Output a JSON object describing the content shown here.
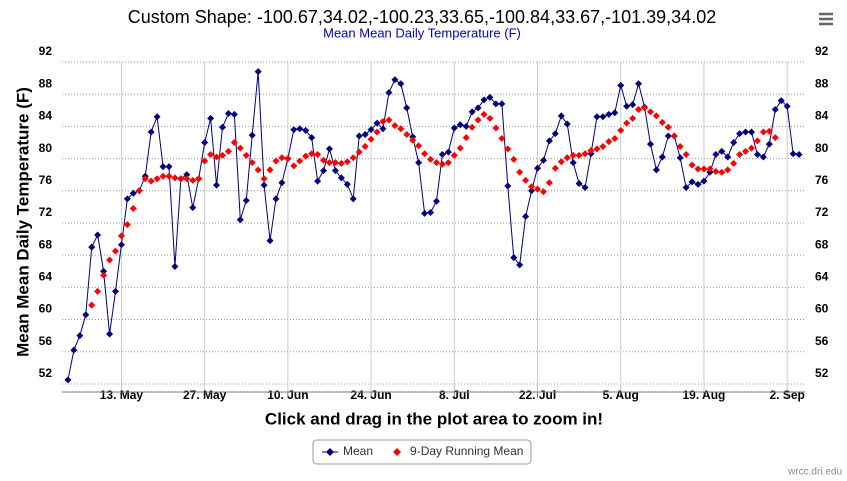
{
  "chart_data": {
    "type": "line",
    "title": "Custom Shape: -100.67,34.02,-100.23,33.65,-100.84,33.67,-101.39,34.02",
    "subtitle": "Mean Mean Daily Temperature (F)",
    "y_label": "Mean Mean Daily Temperature (F)",
    "x_label": "Click and drag in the plot area to zoom in!",
    "credits": "wrcc.dri.edu",
    "x": [
      "05-04",
      "05-05",
      "05-06",
      "05-07",
      "05-08",
      "05-09",
      "05-10",
      "05-11",
      "05-12",
      "05-13",
      "05-14",
      "05-15",
      "05-16",
      "05-17",
      "05-18",
      "05-19",
      "05-20",
      "05-21",
      "05-22",
      "05-23",
      "05-24",
      "05-25",
      "05-26",
      "05-27",
      "05-28",
      "05-29",
      "05-30",
      "05-31",
      "06-01",
      "06-02",
      "06-03",
      "06-04",
      "06-05",
      "06-06",
      "06-07",
      "06-08",
      "06-09",
      "06-10",
      "06-11",
      "06-12",
      "06-13",
      "06-14",
      "06-15",
      "06-16",
      "06-17",
      "06-18",
      "06-19",
      "06-20",
      "06-21",
      "06-22",
      "06-23",
      "06-24",
      "06-25",
      "06-26",
      "06-27",
      "06-28",
      "06-29",
      "06-30",
      "07-01",
      "07-02",
      "07-03",
      "07-04",
      "07-05",
      "07-06",
      "07-07",
      "07-08",
      "07-09",
      "07-10",
      "07-11",
      "07-12",
      "07-13",
      "07-14",
      "07-15",
      "07-16",
      "07-17",
      "07-18",
      "07-19",
      "07-20",
      "07-21",
      "07-22",
      "07-23",
      "07-24",
      "07-25",
      "07-26",
      "07-27",
      "07-28",
      "07-29",
      "07-30",
      "07-31",
      "08-01",
      "08-02",
      "08-03",
      "08-04",
      "08-05",
      "08-06",
      "08-07",
      "08-08",
      "08-09",
      "08-10",
      "08-11",
      "08-12",
      "08-13",
      "08-14",
      "08-15",
      "08-16",
      "08-17",
      "08-18",
      "08-19",
      "08-20",
      "08-21",
      "08-22",
      "08-23",
      "08-24",
      "08-25",
      "08-26",
      "08-27",
      "08-28",
      "08-29",
      "08-30",
      "08-31",
      "09-01",
      "09-02",
      "09-03",
      "09-04"
    ],
    "series": [
      {
        "name": "Mean",
        "color": "#000080",
        "line": true,
        "values": [
          52.5,
          56.2,
          58,
          60.6,
          69,
          70.5,
          66,
          58.2,
          63.5,
          69.3,
          75,
          75.7,
          76,
          77.8,
          83.3,
          85.2,
          79,
          79,
          66.6,
          77.5,
          78,
          73.9,
          77.5,
          82,
          85,
          76.7,
          83.9,
          85.6,
          85.5,
          72.4,
          74.8,
          82.9,
          90.8,
          76.7,
          69.8,
          75,
          77,
          80,
          83.6,
          83.7,
          83.5,
          82.6,
          77.2,
          78.5,
          81.2,
          78.5,
          77.6,
          76.8,
          75,
          82.8,
          83,
          83.6,
          84.4,
          83.7,
          88.2,
          89.8,
          89.3,
          86.3,
          82.7,
          79.5,
          73.2,
          73.3,
          74.7,
          80.5,
          80.8,
          83.8,
          84.2,
          84,
          85.8,
          86.3,
          87.3,
          87.6,
          86.8,
          86.8,
          76.6,
          67.7,
          66.8,
          72.8,
          76,
          78.8,
          79.8,
          82.2,
          83.1,
          85.3,
          84.3,
          79.5,
          76.9,
          76.4,
          80.6,
          85.2,
          85.2,
          85.5,
          85.7,
          89.1,
          86.5,
          86.7,
          89.3,
          86.4,
          81.8,
          78.6,
          80.2,
          82.8,
          82.8,
          80.1,
          76.4,
          77.1,
          76.8,
          77.2,
          78.3,
          80.5,
          80.9,
          80.2,
          82,
          83.1,
          83.3,
          83.3,
          80.5,
          80.2,
          81.8,
          86.1,
          87.2,
          86.5,
          80.6,
          80.5
        ]
      },
      {
        "name": "9-Day Running Mean",
        "color": "#ff0000",
        "line": false,
        "values": [
          null,
          null,
          null,
          null,
          61.8,
          63.5,
          65.5,
          67.4,
          68.5,
          70.4,
          71.8,
          73.8,
          76,
          77.5,
          77.2,
          77.5,
          77.8,
          77.8,
          77.6,
          77.5,
          77.5,
          77.3,
          77.5,
          79.7,
          80.5,
          80.2,
          80.4,
          80.9,
          82,
          81.3,
          80.4,
          79.5,
          78.6,
          77.5,
          78.6,
          79.7,
          80.1,
          80,
          79.1,
          79.7,
          80.3,
          80.6,
          80.5,
          79.8,
          79.5,
          79.5,
          79.4,
          79.6,
          80.1,
          80.8,
          81.5,
          82.4,
          83.3,
          84.6,
          84.8,
          84.1,
          83.7,
          83,
          82.3,
          81.6,
          80.6,
          79.9,
          79.5,
          79.3,
          79.5,
          80.4,
          81.3,
          82.6,
          83.9,
          84.8,
          85.5,
          85,
          83.8,
          82.5,
          81.2,
          79.9,
          78.3,
          77.3,
          76.5,
          76.2,
          75.9,
          77,
          78.8,
          79.6,
          80.1,
          80.4,
          80.4,
          80.6,
          81,
          81.2,
          81.5,
          82.1,
          82.5,
          83.5,
          84.4,
          85,
          86.1,
          86.3,
          85.8,
          85.3,
          84.5,
          83.9,
          82.8,
          81.5,
          80.5,
          79.2,
          78.7,
          78.7,
          78.7,
          78.4,
          78.3,
          78.6,
          79.4,
          80.5,
          80.9,
          81.3,
          82.2,
          83.3,
          83.4,
          82.6,
          null,
          null,
          null,
          null
        ]
      }
    ],
    "xlim": [
      "05-03",
      "09-05"
    ],
    "xticks": [
      {
        "value": "05-13",
        "label": "13. May"
      },
      {
        "value": "05-27",
        "label": "27. May"
      },
      {
        "value": "06-10",
        "label": "10. Jun"
      },
      {
        "value": "06-24",
        "label": "24. Jun"
      },
      {
        "value": "07-08",
        "label": "8. Jul"
      },
      {
        "value": "07-22",
        "label": "22. Jul"
      },
      {
        "value": "08-05",
        "label": "5. Aug"
      },
      {
        "value": "08-19",
        "label": "19. Aug"
      },
      {
        "value": "09-02",
        "label": "2. Sep"
      }
    ],
    "ylim": [
      51,
      92
    ],
    "yticks": [
      52,
      56,
      60,
      64,
      68,
      72,
      76,
      80,
      84,
      88,
      92
    ],
    "grid": true
  }
}
